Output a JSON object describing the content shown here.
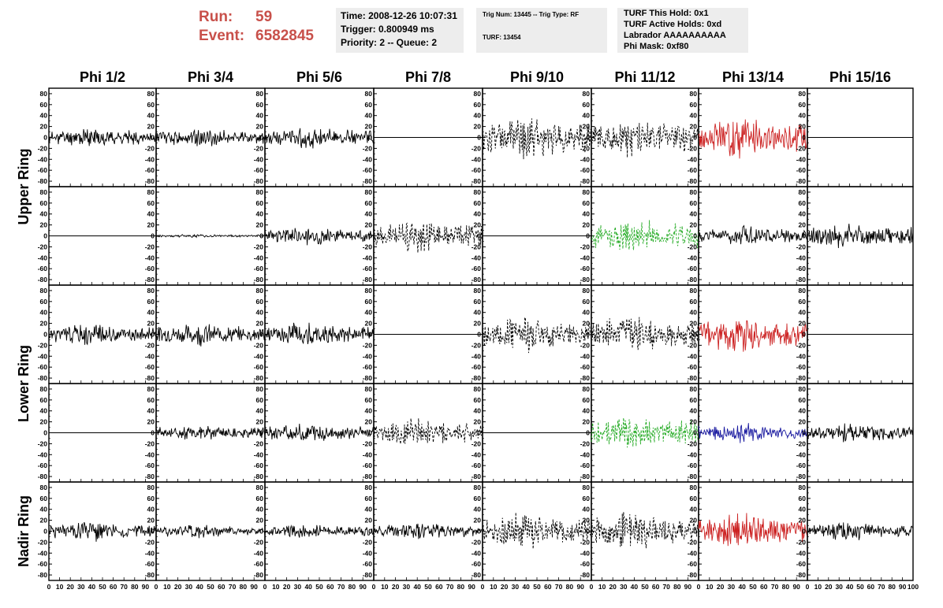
{
  "header": {
    "run_label": "Run:",
    "run_value": "59",
    "event_label": "Event:",
    "event_value": "6582845",
    "color": "#c8504a"
  },
  "info_box_1": {
    "time": "Time: 2008-12-26 10:07:31",
    "trigger": "Trigger: 0.800949 ms",
    "priority": "Priority: 2 -- Queue: 2"
  },
  "info_box_2": {
    "trig": "Trig Num: 13445 -- Trig Type: RF",
    "turf": "TURF: 13454"
  },
  "info_box_3": {
    "this_hold": "TURF This Hold: 0x1",
    "active_holds": "TURF Active Holds: 0xd",
    "labrador": "Labrador AAAAAAAAAA",
    "phi_mask": "Phi Mask: 0xf80"
  },
  "chart_data": {
    "type": "line",
    "column_titles": [
      "Phi 1/2",
      "Phi 3/4",
      "Phi 5/6",
      "Phi 7/8",
      "Phi 9/10",
      "Phi 11/12",
      "Phi 13/14",
      "Phi 15/16"
    ],
    "ring_labels": [
      "Upper Ring",
      "Lower Ring",
      "Nadir Ring"
    ],
    "x_range": [
      0,
      100
    ],
    "y_range": [
      -90,
      90
    ],
    "x_ticks": [
      "0",
      "10",
      "20",
      "30",
      "40",
      "50",
      "60",
      "70",
      "80",
      "90",
      "100"
    ],
    "y_ticks": [
      "80",
      "60",
      "40",
      "20",
      "0",
      "-20",
      "-40",
      "-60",
      "-80"
    ],
    "colors": {
      "black": "#000000",
      "red": "#cc2222",
      "green": "#22aa22",
      "blue": "#1a1aa0"
    },
    "panels": [
      [
        {
          "amp": 12,
          "color": "black",
          "style": "solid",
          "seed": 11
        },
        {
          "amp": 12,
          "color": "black",
          "style": "solid",
          "seed": 12
        },
        {
          "amp": 14,
          "color": "black",
          "style": "solid",
          "seed": 13
        },
        {
          "amp": 0,
          "color": "black",
          "style": "flat",
          "seed": 14
        },
        {
          "amp": 28,
          "color": "black",
          "style": "dashed",
          "seed": 15
        },
        {
          "amp": 24,
          "color": "black",
          "style": "dashed",
          "seed": 16
        },
        {
          "amp": 26,
          "color": "red",
          "style": "solid",
          "seed": 17
        },
        {
          "amp": 0,
          "color": "black",
          "style": "flat",
          "seed": 18
        }
      ],
      [
        {
          "amp": 0,
          "color": "black",
          "style": "flat",
          "seed": 21
        },
        {
          "amp": 2,
          "color": "black",
          "style": "solid",
          "seed": 22
        },
        {
          "amp": 12,
          "color": "black",
          "style": "solid",
          "seed": 23
        },
        {
          "amp": 20,
          "color": "black",
          "style": "dashed",
          "seed": 24
        },
        {
          "amp": 0,
          "color": "black",
          "style": "flat",
          "seed": 25
        },
        {
          "amp": 22,
          "color": "green",
          "style": "dashed",
          "seed": 26
        },
        {
          "amp": 12,
          "color": "black",
          "style": "solid",
          "seed": 27
        },
        {
          "amp": 16,
          "color": "black",
          "style": "solid",
          "seed": 28
        }
      ],
      [
        {
          "amp": 14,
          "color": "black",
          "style": "solid",
          "seed": 31
        },
        {
          "amp": 14,
          "color": "black",
          "style": "solid",
          "seed": 32
        },
        {
          "amp": 15,
          "color": "black",
          "style": "solid",
          "seed": 33
        },
        {
          "amp": 0,
          "color": "black",
          "style": "flat",
          "seed": 34
        },
        {
          "amp": 22,
          "color": "black",
          "style": "dashed",
          "seed": 35
        },
        {
          "amp": 24,
          "color": "black",
          "style": "dashed",
          "seed": 36
        },
        {
          "amp": 24,
          "color": "red",
          "style": "solid",
          "seed": 37
        },
        {
          "amp": 0,
          "color": "black",
          "style": "flat",
          "seed": 38
        }
      ],
      [
        {
          "amp": 0,
          "color": "black",
          "style": "flat",
          "seed": 41
        },
        {
          "amp": 10,
          "color": "black",
          "style": "solid",
          "seed": 42
        },
        {
          "amp": 12,
          "color": "black",
          "style": "solid",
          "seed": 43
        },
        {
          "amp": 18,
          "color": "black",
          "style": "dashed",
          "seed": 44
        },
        {
          "amp": 0,
          "color": "black",
          "style": "flat",
          "seed": 45
        },
        {
          "amp": 22,
          "color": "green",
          "style": "dashed",
          "seed": 46
        },
        {
          "amp": 12,
          "color": "blue",
          "style": "solid",
          "seed": 47
        },
        {
          "amp": 14,
          "color": "black",
          "style": "solid",
          "seed": 48
        }
      ],
      [
        {
          "amp": 13,
          "color": "black",
          "style": "solid",
          "seed": 51
        },
        {
          "amp": 9,
          "color": "black",
          "style": "solid",
          "seed": 52
        },
        {
          "amp": 9,
          "color": "black",
          "style": "solid",
          "seed": 53
        },
        {
          "amp": 11,
          "color": "black",
          "style": "solid",
          "seed": 54
        },
        {
          "amp": 24,
          "color": "black",
          "style": "dashed",
          "seed": 55
        },
        {
          "amp": 24,
          "color": "black",
          "style": "dashed",
          "seed": 56
        },
        {
          "amp": 22,
          "color": "red",
          "style": "solid",
          "seed": 57
        },
        {
          "amp": 12,
          "color": "black",
          "style": "solid",
          "seed": 58
        }
      ]
    ]
  }
}
